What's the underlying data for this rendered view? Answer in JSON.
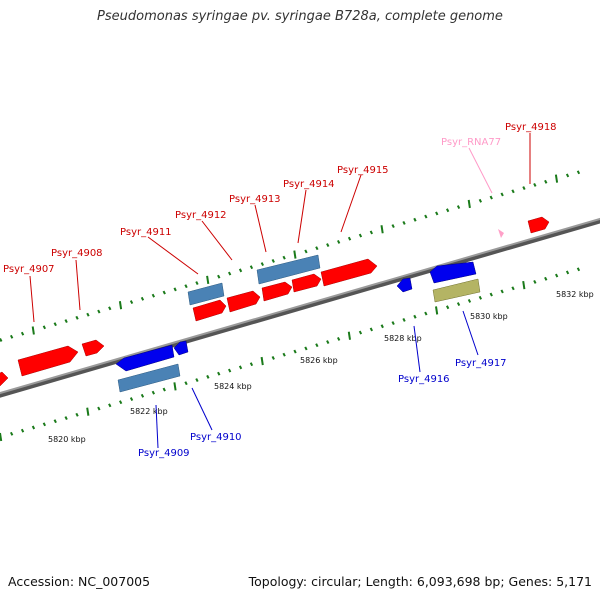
{
  "title": "Pseudomonas syringae pv. syringae B728a, complete genome",
  "footer": {
    "accession": "Accession: NC_007005",
    "summary": "Topology: circular; Length: 6,093,698 bp; Genes: 5,171"
  },
  "colors": {
    "forward_gene": "#ff0000",
    "forward_cds": "#4a82b5",
    "reverse_gene": "#0000ee",
    "reverse_cds": "#4a82b5",
    "rna_gene": "#ffa0c8",
    "pseudo_gene": "#b4b464",
    "backbone": "#7a7a7a",
    "tick": "#1a7a1a",
    "label_forward": "#cc0000",
    "label_reverse": "#0000cc",
    "label_rna": "#ff9ac8"
  },
  "kbp_labels": [
    "5820 kbp",
    "5822 kbp",
    "5824 kbp",
    "5826 kbp",
    "5828 kbp",
    "5830 kbp",
    "5832 kbp"
  ],
  "gene_labels": [
    {
      "name": "Psyr_4907",
      "strand": "forward"
    },
    {
      "name": "Psyr_4908",
      "strand": "forward"
    },
    {
      "name": "Psyr_4911",
      "strand": "forward"
    },
    {
      "name": "Psyr_4912",
      "strand": "forward"
    },
    {
      "name": "Psyr_4913",
      "strand": "forward"
    },
    {
      "name": "Psyr_4914",
      "strand": "forward"
    },
    {
      "name": "Psyr_4915",
      "strand": "forward"
    },
    {
      "name": "Psyr_RNA77",
      "strand": "rna"
    },
    {
      "name": "Psyr_4918",
      "strand": "forward"
    },
    {
      "name": "Psyr_4909",
      "strand": "reverse"
    },
    {
      "name": "Psyr_4910",
      "strand": "reverse"
    },
    {
      "name": "Psyr_4916",
      "strand": "reverse"
    },
    {
      "name": "Psyr_4917",
      "strand": "reverse"
    }
  ]
}
